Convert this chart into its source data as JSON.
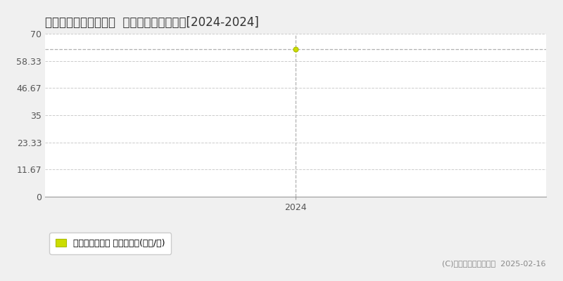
{
  "title": "稲敷郡阿見町うずら野  マンション価格推移[2024-2024]",
  "x_data": [
    2024
  ],
  "y_data": [
    63.5
  ],
  "y_ticks": [
    0,
    11.67,
    23.33,
    35,
    46.67,
    58.33,
    70
  ],
  "y_lim": [
    0,
    70
  ],
  "x_ticks": [
    2024
  ],
  "x_lim": [
    2023.3,
    2024.7
  ],
  "marker_color": "#ccdd00",
  "marker_edge_color": "#aabb00",
  "crosshair_color": "#b0b0b0",
  "grid_color": "#cccccc",
  "bg_color": "#f0f0f0",
  "plot_bg_color": "#ffffff",
  "legend_label": "マンション価格 平均坪単価(万円/坪)",
  "copyright_text": "(C)土地価格ドットコム  2025-02-16",
  "title_fontsize": 12,
  "tick_fontsize": 9,
  "legend_fontsize": 9,
  "copyright_fontsize": 8
}
